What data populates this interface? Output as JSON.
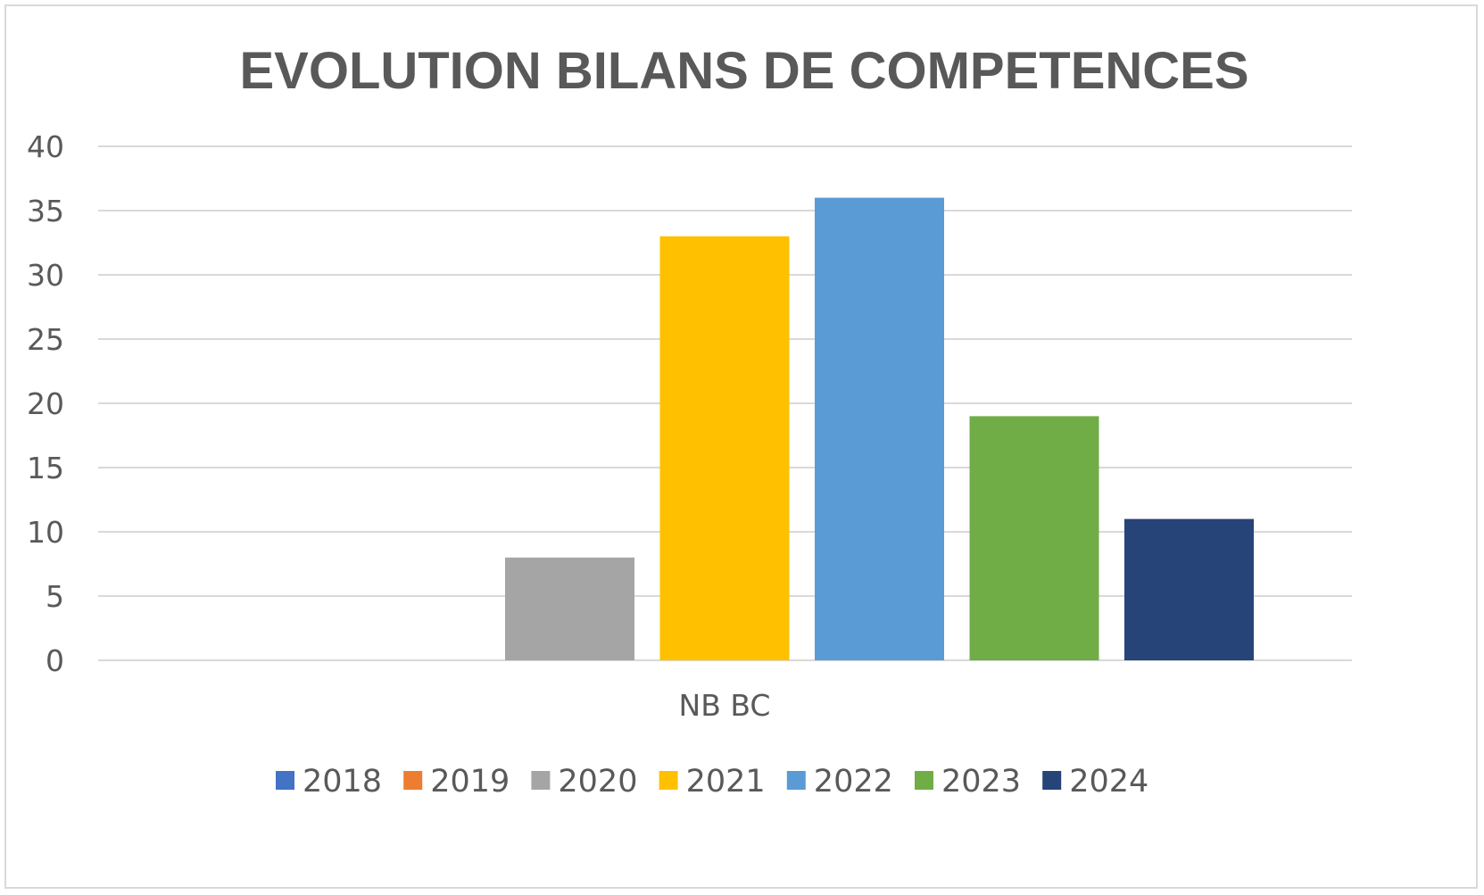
{
  "chart_data": {
    "type": "bar",
    "title": "EVOLUTION BILANS DE COMPETENCES",
    "categories": [
      "NB BC"
    ],
    "series": [
      {
        "name": "2018",
        "values": [
          0
        ],
        "color": "#4472c4"
      },
      {
        "name": "2019",
        "values": [
          0
        ],
        "color": "#ed7d31"
      },
      {
        "name": "2020",
        "values": [
          8
        ],
        "color": "#a5a5a5"
      },
      {
        "name": "2021",
        "values": [
          33
        ],
        "color": "#ffc000"
      },
      {
        "name": "2022",
        "values": [
          36
        ],
        "color": "#5b9bd5"
      },
      {
        "name": "2023",
        "values": [
          19
        ],
        "color": "#70ad47"
      },
      {
        "name": "2024",
        "values": [
          11
        ],
        "color": "#264478"
      }
    ],
    "ylim": [
      0,
      40
    ],
    "yticks": [
      0,
      5,
      10,
      15,
      20,
      25,
      30,
      35,
      40
    ],
    "xlabel": "",
    "ylabel": "",
    "grid": true,
    "legend": "bottom"
  }
}
